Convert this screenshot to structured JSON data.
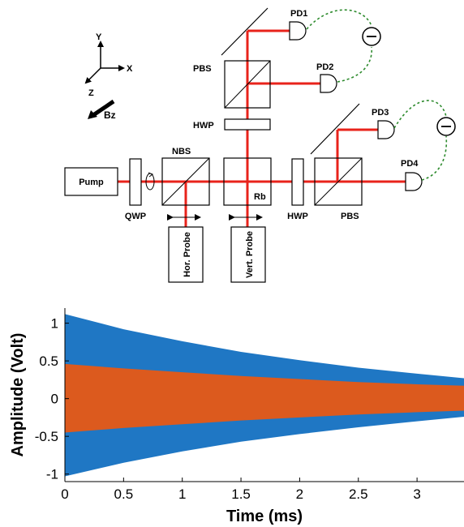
{
  "diagram": {
    "axes": {
      "y": "Y",
      "x": "X",
      "z": "Z",
      "field": "Bz"
    },
    "labels": {
      "pd1": "PD1",
      "pd2": "PD2",
      "pd3": "PD3",
      "pd4": "PD4",
      "pbs_top": "PBS",
      "pbs_right": "PBS",
      "hwp_top": "HWP",
      "hwp_right": "HWP",
      "nbs": "NBS",
      "qwp": "QWP",
      "rb": "Rb",
      "pump": "Pump",
      "hor_probe": "Hor. Probe",
      "vert_probe": "Vert. Probe"
    },
    "colors": {
      "beam": "#e8231b",
      "fiber": "#2e8b2e"
    }
  },
  "chart_data": {
    "type": "area",
    "xlabel": "Time (ms)",
    "ylabel": "Amplitude (Volt)",
    "xlim": [
      0,
      3.4
    ],
    "ylim": [
      -1.1,
      1.2
    ],
    "x_ticks": [
      "0",
      "0.5",
      "1",
      "1.5",
      "2",
      "2.5",
      "3"
    ],
    "y_ticks": [
      "-1",
      "-0.5",
      "0",
      "0.5",
      "1"
    ],
    "series": [
      {
        "color": "#1f77c4",
        "x": [
          0,
          0.5,
          1.0,
          1.5,
          2.0,
          2.5,
          3.0,
          3.4
        ],
        "upper": [
          1.12,
          0.92,
          0.76,
          0.62,
          0.51,
          0.41,
          0.33,
          0.27
        ],
        "lower": [
          -1.03,
          -0.85,
          -0.7,
          -0.57,
          -0.47,
          -0.38,
          -0.3,
          -0.24
        ]
      },
      {
        "color": "#dc5a1e",
        "x": [
          0,
          0.5,
          1.0,
          1.5,
          2.0,
          2.5,
          3.0,
          3.4
        ],
        "upper": [
          0.46,
          0.4,
          0.35,
          0.3,
          0.26,
          0.22,
          0.19,
          0.17
        ],
        "lower": [
          -0.45,
          -0.39,
          -0.34,
          -0.29,
          -0.25,
          -0.21,
          -0.18,
          -0.16
        ]
      }
    ]
  }
}
